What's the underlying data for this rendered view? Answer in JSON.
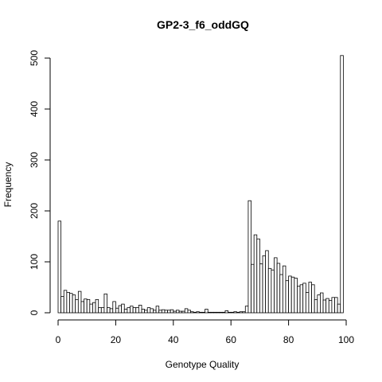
{
  "chart_data": {
    "type": "bar",
    "title": "GP2-3_f6_oddGQ",
    "xlabel": "Genotype Quality",
    "ylabel": "Frequency",
    "xlim": [
      0,
      100
    ],
    "ylim": [
      0,
      500
    ],
    "x_ticks": [
      0,
      20,
      40,
      60,
      80,
      100
    ],
    "y_ticks": [
      0,
      100,
      200,
      300,
      400,
      500
    ],
    "bin_width": 1,
    "bin_start": 0,
    "bar_fill": "#ffffff",
    "bar_stroke": "#000000",
    "values": [
      180,
      32,
      44,
      40,
      38,
      35,
      26,
      42,
      22,
      27,
      26,
      17,
      20,
      26,
      10,
      10,
      37,
      10,
      8,
      22,
      9,
      14,
      17,
      7,
      10,
      13,
      10,
      10,
      15,
      7,
      5,
      10,
      8,
      5,
      13,
      5,
      6,
      5,
      5,
      6,
      3,
      5,
      3,
      3,
      8,
      5,
      2,
      1,
      2,
      1,
      1,
      7,
      1,
      1,
      1,
      1,
      1,
      1,
      4,
      1,
      1,
      2,
      1,
      2,
      2,
      13,
      220,
      95,
      153,
      145,
      96,
      112,
      122,
      87,
      84,
      108,
      97,
      75,
      92,
      63,
      72,
      70,
      68,
      52,
      55,
      58,
      40,
      60,
      55,
      26,
      35,
      39,
      25,
      28,
      24,
      30,
      30,
      17,
      505
    ]
  }
}
